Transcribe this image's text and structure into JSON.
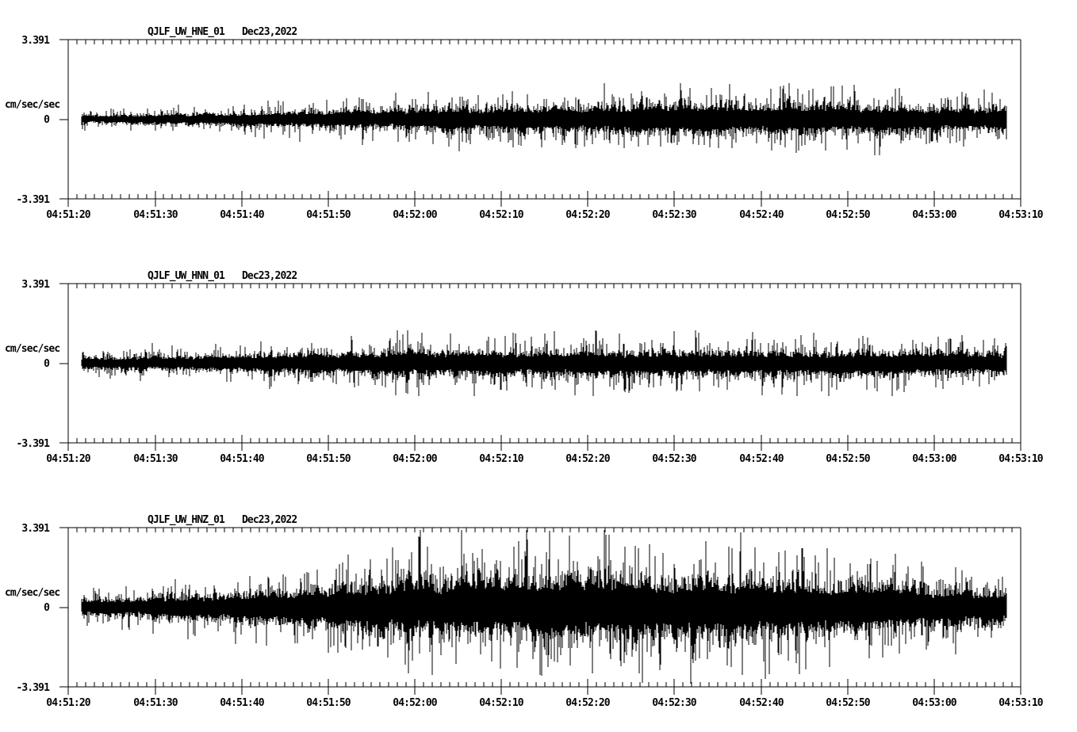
{
  "page": {
    "background_color": "#ffffff",
    "ink_color": "#000000",
    "description": "Three-component strong-motion seismogram record display"
  },
  "chart_data": {
    "type": "line",
    "kind": "seismogram",
    "ylabel": "cm/sec/sec",
    "ylim": [
      -3.391,
      3.391
    ],
    "y_tick_labels": {
      "max": "3.391",
      "zero": "0",
      "min": "-3.391"
    },
    "x_tick_labels": [
      "04:51:20",
      "04:51:30",
      "04:51:40",
      "04:51:50",
      "04:52:00",
      "04:52:10",
      "04:52:20",
      "04:52:30",
      "04:52:40",
      "04:52:50",
      "04:53:00",
      "04:53:10"
    ],
    "x_major_interval_sec": 10,
    "x_minor_interval_sec": 1,
    "x_axis_span_sec": 110,
    "trace_time_span_sec": [
      1.5,
      108.4
    ],
    "grid": false,
    "legend": false,
    "line_color": "#000000",
    "panels": [
      {
        "station": "QJLF_UW_HNE_01",
        "date": "Dec23,2022",
        "envelope_t_sec": [
          0,
          5,
          10,
          15,
          20,
          25,
          30,
          35,
          40,
          45,
          50,
          55,
          60,
          65,
          70,
          75,
          80,
          85,
          90,
          95,
          100,
          105,
          110
        ],
        "envelope_amp": [
          0.135,
          0.15,
          0.18,
          0.21,
          0.24,
          0.27,
          0.3,
          0.34,
          0.37,
          0.405,
          0.44,
          0.44,
          0.47,
          0.47,
          0.505,
          0.54,
          0.505,
          0.505,
          0.47,
          0.47,
          0.44,
          0.405,
          0.405
        ],
        "hair_cap": 1.55,
        "peaks": [
          [
            1.75,
            0.28
          ],
          [
            1.9,
            -0.48
          ],
          [
            41.6,
            1.15
          ],
          [
            51.3,
            1.2
          ],
          [
            63.5,
            -1.1
          ],
          [
            76.4,
            1.5
          ],
          [
            82.6,
            1.45
          ],
          [
            82.8,
            -1.2
          ],
          [
            88.1,
            1.4
          ],
          [
            103.7,
            1.1
          ]
        ],
        "seed": 101
      },
      {
        "station": "QJLF_UW_HNN_01",
        "date": "Dec23,2022",
        "envelope_t_sec": [
          0,
          5,
          10,
          15,
          20,
          25,
          30,
          35,
          40,
          45,
          50,
          55,
          60,
          65,
          70,
          75,
          80,
          85,
          90,
          95,
          100,
          105,
          110
        ],
        "envelope_amp": [
          0.19,
          0.21,
          0.23,
          0.26,
          0.29,
          0.35,
          0.38,
          0.41,
          0.44,
          0.44,
          0.44,
          0.44,
          0.44,
          0.44,
          0.44,
          0.44,
          0.44,
          0.41,
          0.44,
          0.41,
          0.405,
          0.37,
          0.37
        ],
        "hair_cap": 1.4,
        "peaks": [
          [
            8.3,
            -0.75
          ],
          [
            23.4,
            -1.0
          ],
          [
            32.8,
            1.0
          ],
          [
            61.7,
            1.05
          ],
          [
            70.0,
            1.35
          ],
          [
            70.2,
            -1.2
          ],
          [
            91.3,
            1.05
          ],
          [
            91.8,
            1.15
          ],
          [
            92.3,
            1.1
          ],
          [
            103.0,
            0.9
          ]
        ],
        "seed": 202
      },
      {
        "station": "QJLF_UW_HNZ_01",
        "date": "Dec23,2022",
        "envelope_t_sec": [
          0,
          5,
          10,
          15,
          20,
          25,
          30,
          35,
          40,
          45,
          50,
          55,
          60,
          65,
          70,
          75,
          80,
          85,
          90,
          95,
          100,
          105,
          110
        ],
        "envelope_amp": [
          0.28,
          0.31,
          0.37,
          0.45,
          0.53,
          0.63,
          0.73,
          0.85,
          0.95,
          1.02,
          1.06,
          1.12,
          1.09,
          1.06,
          1.03,
          1.0,
          0.95,
          0.88,
          0.8,
          0.72,
          0.66,
          0.59,
          0.55
        ],
        "hair_cap": 3.3,
        "peaks": [
          [
            1.8,
            -0.5
          ],
          [
            7.0,
            -0.95
          ],
          [
            31.7,
            1.9
          ],
          [
            42.0,
            -2.9
          ],
          [
            48.1,
            1.9
          ],
          [
            55.6,
            3.27
          ],
          [
            55.8,
            -2.2
          ],
          [
            62.6,
            -2.2
          ],
          [
            68.7,
            2.3
          ],
          [
            84.2,
            2.2
          ],
          [
            87.9,
            -2.55
          ],
          [
            95.2,
            1.8
          ],
          [
            102.5,
            1.7
          ]
        ],
        "seed": 303
      }
    ]
  }
}
